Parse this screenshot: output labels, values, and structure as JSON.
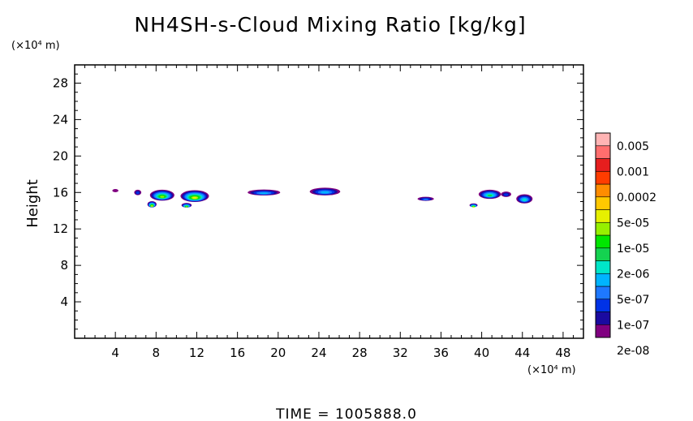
{
  "chart_data": {
    "type": "heatmap",
    "title": "NH4SH-s-Cloud Mixing Ratio [kg/kg]",
    "ylabel": "Height",
    "y_unit": "(×10⁴ m)",
    "x_unit": "(×10⁴ m)",
    "footer": "TIME = 1005888.0",
    "xlim": [
      0,
      50
    ],
    "ylim": [
      0,
      30
    ],
    "x_ticks": [
      4,
      8,
      12,
      16,
      20,
      24,
      28,
      32,
      36,
      40,
      44,
      48
    ],
    "y_ticks": [
      4,
      8,
      12,
      16,
      20,
      24,
      28
    ],
    "colorbar": {
      "labels": [
        "0.005",
        "0.001",
        "0.0002",
        "5e-05",
        "1e-05",
        "2e-06",
        "5e-07",
        "1e-07",
        "2e-08"
      ],
      "colors": [
        "#800080",
        "#1a0aa0",
        "#0032e6",
        "#1e78ff",
        "#00b4ff",
        "#00e6c8",
        "#14d250",
        "#00e600",
        "#96f000",
        "#e6f000",
        "#ffc800",
        "#ff8c00",
        "#ff3c00",
        "#e61e1e",
        "#ff6e6e",
        "#ffb4b4"
      ]
    },
    "cloud_blobs": [
      {
        "x": 4.0,
        "y": 16.2,
        "w": 0.6,
        "h": 0.35,
        "core": 0
      },
      {
        "x": 6.2,
        "y": 16.0,
        "w": 0.7,
        "h": 0.6,
        "core": 2
      },
      {
        "x": 8.6,
        "y": 15.7,
        "w": 2.4,
        "h": 1.2,
        "core": 8
      },
      {
        "x": 7.6,
        "y": 14.7,
        "w": 0.9,
        "h": 0.7,
        "core": 9
      },
      {
        "x": 11.8,
        "y": 15.6,
        "w": 2.8,
        "h": 1.3,
        "core": 9
      },
      {
        "x": 11.0,
        "y": 14.6,
        "w": 1.0,
        "h": 0.5,
        "core": 8
      },
      {
        "x": 18.6,
        "y": 16.0,
        "w": 3.2,
        "h": 0.65,
        "core": 4
      },
      {
        "x": 24.6,
        "y": 16.1,
        "w": 3.0,
        "h": 0.85,
        "core": 4
      },
      {
        "x": 34.5,
        "y": 15.3,
        "w": 1.6,
        "h": 0.45,
        "core": 3
      },
      {
        "x": 39.2,
        "y": 14.6,
        "w": 0.8,
        "h": 0.4,
        "core": 9
      },
      {
        "x": 40.8,
        "y": 15.8,
        "w": 2.2,
        "h": 1.0,
        "core": 6
      },
      {
        "x": 42.4,
        "y": 15.8,
        "w": 1.0,
        "h": 0.6,
        "core": 2
      },
      {
        "x": 44.2,
        "y": 15.3,
        "w": 1.6,
        "h": 1.0,
        "core": 5
      }
    ]
  }
}
